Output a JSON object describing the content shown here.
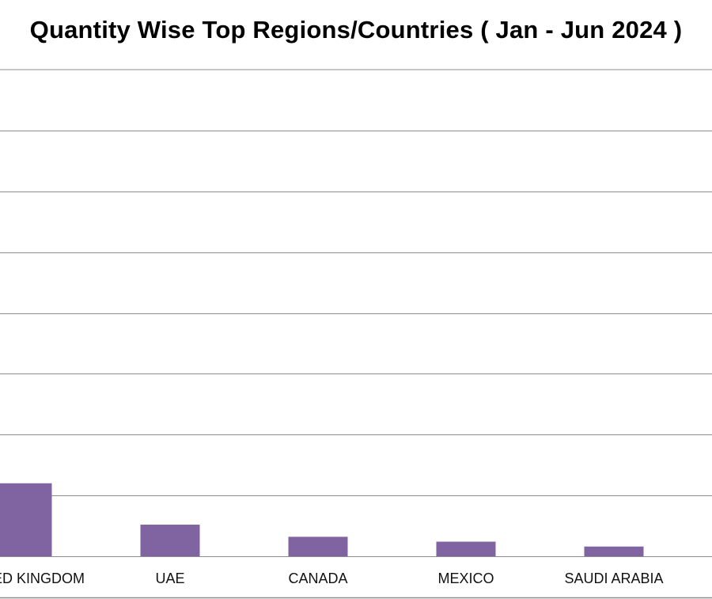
{
  "chart_data": {
    "type": "bar",
    "title": "Quantity Wise Top Regions/Countries ( Jan - Jun 2024 )",
    "categories": [
      "UNITED KINGDOM",
      "UAE",
      "CANADA",
      "MEXICO",
      "SAUDI ARABIA"
    ],
    "values": [
      60,
      26,
      16,
      12,
      8
    ],
    "ylim": [
      0,
      400
    ],
    "grid": true,
    "bar_color": "#8064a2",
    "grid_color": "#8c8c8c"
  }
}
